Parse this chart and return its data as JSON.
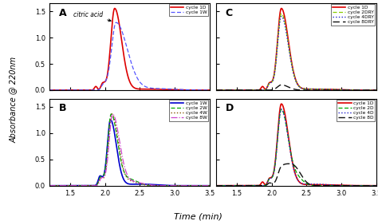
{
  "xlim": [
    1.2,
    3.5
  ],
  "ylim": [
    0.0,
    1.65
  ],
  "yticks": [
    0.0,
    0.5,
    1.0,
    1.5
  ],
  "xticks": [
    1.5,
    2.0,
    2.5,
    3.0,
    3.5
  ],
  "xlabel": "Time (min)",
  "ylabel": "Absorbance @ 220nm",
  "citric_acid_annotation": "citric acid",
  "legends": {
    "A": [
      {
        "label": "cycle 1D",
        "color": "#dd0000",
        "ls": "solid",
        "lw": 1.2
      },
      {
        "label": "cycle 1W",
        "color": "#5555ff",
        "ls": "dashed",
        "lw": 0.9,
        "dashes": [
          4,
          2
        ]
      }
    ],
    "B": [
      {
        "label": "cycle 1W",
        "color": "#0000cc",
        "ls": "solid",
        "lw": 1.2
      },
      {
        "label": "cycle 2W",
        "color": "#00aa00",
        "ls": "dashed",
        "lw": 0.9,
        "dashes": [
          4,
          2
        ]
      },
      {
        "label": "cycle 4W",
        "color": "#885500",
        "ls": "dotted",
        "lw": 1.0
      },
      {
        "label": "cycle 8W",
        "color": "#cc44cc",
        "ls": "dashdot",
        "lw": 0.9
      }
    ],
    "C": [
      {
        "label": "cycle 1D",
        "color": "#dd0000",
        "ls": "solid",
        "lw": 1.2
      },
      {
        "label": "cycle 2DRY",
        "color": "#88cc00",
        "ls": "dashed",
        "lw": 0.9,
        "dashes": [
          4,
          2
        ]
      },
      {
        "label": "cycle 4DRY",
        "color": "#2222cc",
        "ls": "dotted",
        "lw": 1.0
      },
      {
        "label": "cycle 8DRY",
        "color": "#111111",
        "ls": "dashed",
        "lw": 1.0,
        "dashes": [
          6,
          3
        ]
      }
    ],
    "D": [
      {
        "label": "cycle 1D",
        "color": "#dd0000",
        "ls": "solid",
        "lw": 1.2
      },
      {
        "label": "cycle 2D",
        "color": "#00aa00",
        "ls": "dashed",
        "lw": 0.9,
        "dashes": [
          4,
          2
        ]
      },
      {
        "label": "cycle 4D",
        "color": "#2222cc",
        "ls": "dotted",
        "lw": 1.0
      },
      {
        "label": "cycle 8D",
        "color": "#111111",
        "ls": "dashed",
        "lw": 1.0,
        "dashes": [
          6,
          3
        ]
      }
    ]
  }
}
